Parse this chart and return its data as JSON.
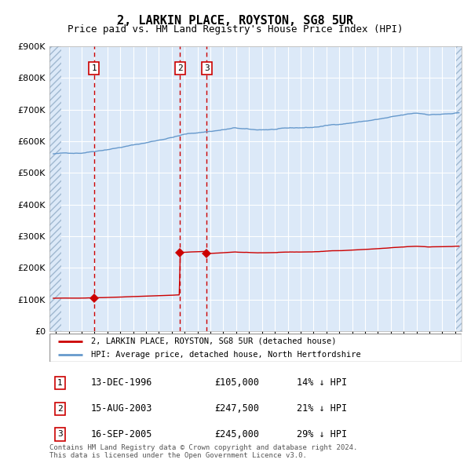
{
  "title": "2, LARKIN PLACE, ROYSTON, SG8 5UR",
  "subtitle": "Price paid vs. HM Land Registry's House Price Index (HPI)",
  "ylim": [
    0,
    900000
  ],
  "yticks": [
    0,
    100000,
    200000,
    300000,
    400000,
    500000,
    600000,
    700000,
    800000,
    900000
  ],
  "ytick_labels": [
    "£0",
    "£100K",
    "£200K",
    "£300K",
    "£400K",
    "£500K",
    "£600K",
    "£700K",
    "£800K",
    "£900K"
  ],
  "background_color": "#dce9f8",
  "grid_color": "#ffffff",
  "red_line_color": "#cc0000",
  "blue_line_color": "#6699cc",
  "sale_points": [
    {
      "date_num": 1996.96,
      "price": 105000,
      "label": "1"
    },
    {
      "date_num": 2003.62,
      "price": 247500,
      "label": "2"
    },
    {
      "date_num": 2005.71,
      "price": 245000,
      "label": "3"
    }
  ],
  "vline_dates": [
    1996.96,
    2003.62,
    2005.71
  ],
  "legend_entries": [
    "2, LARKIN PLACE, ROYSTON, SG8 5UR (detached house)",
    "HPI: Average price, detached house, North Hertfordshire"
  ],
  "table_rows": [
    {
      "num": "1",
      "date": "13-DEC-1996",
      "price": "£105,000",
      "hpi": "14% ↓ HPI"
    },
    {
      "num": "2",
      "date": "15-AUG-2003",
      "price": "£247,500",
      "hpi": "21% ↓ HPI"
    },
    {
      "num": "3",
      "date": "16-SEP-2005",
      "price": "£245,000",
      "hpi": "29% ↓ HPI"
    }
  ],
  "footnote": "Contains HM Land Registry data © Crown copyright and database right 2024.\nThis data is licensed under the Open Government Licence v3.0.",
  "xlim_start": 1993.5,
  "xlim_end": 2025.5
}
